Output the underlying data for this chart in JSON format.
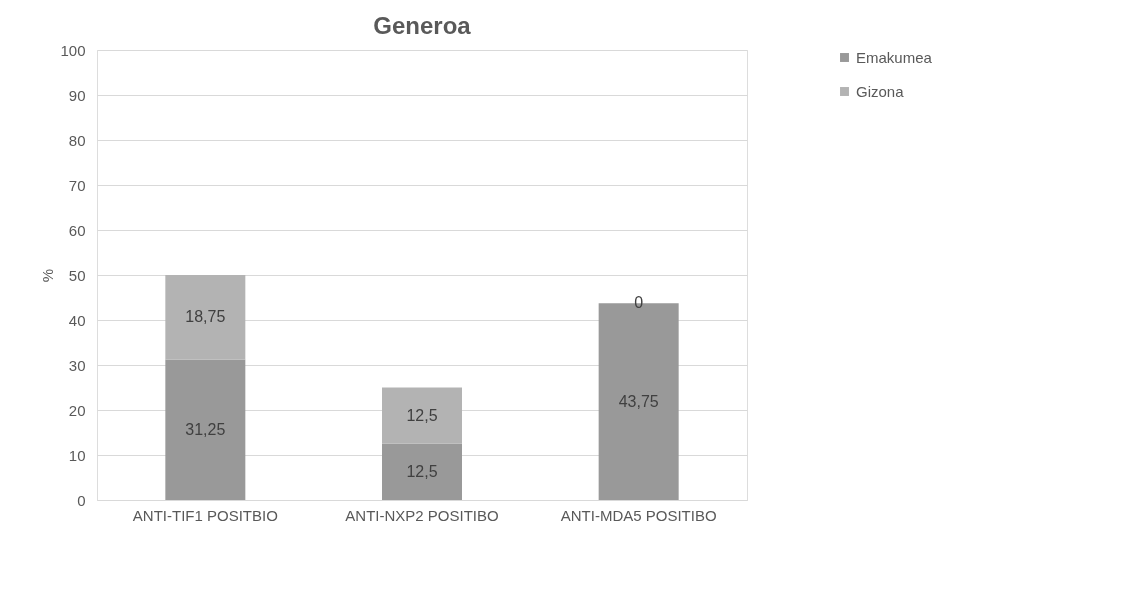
{
  "chart_data": {
    "type": "bar",
    "title": "Generoa",
    "ylabel": "%",
    "stacked": true,
    "categories": [
      "ANTI-TIF1  POSITBIO",
      "ANTI-NXP2 POSITIBO",
      "ANTI-MDA5 POSITIBO"
    ],
    "series": [
      {
        "name": "Emakumea",
        "color": "#999999",
        "values": [
          31.25,
          12.5,
          43.75
        ],
        "value_labels": [
          "31,25",
          "12,5",
          "43,75"
        ]
      },
      {
        "name": "Gizona",
        "color": "#b3b3b3",
        "values": [
          18.75,
          12.5,
          0
        ],
        "value_labels": [
          "18,75",
          "12,5",
          "0"
        ]
      }
    ],
    "ylim": [
      0,
      100
    ],
    "yticks": [
      0,
      10,
      20,
      30,
      40,
      50,
      60,
      70,
      80,
      90,
      100
    ],
    "grid": "y",
    "legend": "right"
  }
}
